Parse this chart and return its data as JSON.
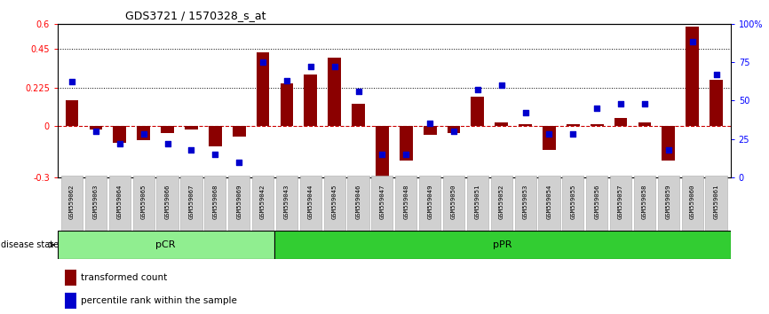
{
  "title": "GDS3721 / 1570328_s_at",
  "samples": [
    "GSM559062",
    "GSM559063",
    "GSM559064",
    "GSM559065",
    "GSM559066",
    "GSM559067",
    "GSM559068",
    "GSM559069",
    "GSM559042",
    "GSM559043",
    "GSM559044",
    "GSM559045",
    "GSM559046",
    "GSM559047",
    "GSM559048",
    "GSM559049",
    "GSM559050",
    "GSM559051",
    "GSM559052",
    "GSM559053",
    "GSM559054",
    "GSM559055",
    "GSM559056",
    "GSM559057",
    "GSM559058",
    "GSM559059",
    "GSM559060",
    "GSM559061"
  ],
  "transformed_count": [
    0.15,
    -0.02,
    -0.1,
    -0.08,
    -0.04,
    -0.02,
    -0.12,
    -0.06,
    0.43,
    0.25,
    0.3,
    0.4,
    0.13,
    -0.3,
    -0.2,
    -0.05,
    -0.04,
    0.17,
    0.02,
    0.01,
    -0.14,
    0.01,
    0.01,
    0.05,
    0.02,
    -0.2,
    0.58,
    0.27
  ],
  "percentile_rank": [
    62,
    30,
    22,
    28,
    22,
    18,
    15,
    10,
    75,
    63,
    72,
    72,
    56,
    15,
    15,
    35,
    30,
    57,
    60,
    42,
    28,
    28,
    45,
    48,
    48,
    18,
    88,
    67
  ],
  "pCR_count": 9,
  "pPR_count": 19,
  "ylim_left": [
    -0.3,
    0.6
  ],
  "ylim_right": [
    0,
    100
  ],
  "yticks_left": [
    -0.3,
    0,
    0.225,
    0.45,
    0.6
  ],
  "yticks_right": [
    0,
    25,
    50,
    75,
    100
  ],
  "hlines": [
    0.225,
    0.45
  ],
  "bar_color": "#8B0000",
  "scatter_color": "#0000CD",
  "zero_line_color": "#CC0000",
  "pcr_color": "#90EE90",
  "ppr_color": "#32CD32",
  "label_bar": "transformed count",
  "label_scatter": "percentile rank within the sample",
  "bg_color": "#ffffff"
}
